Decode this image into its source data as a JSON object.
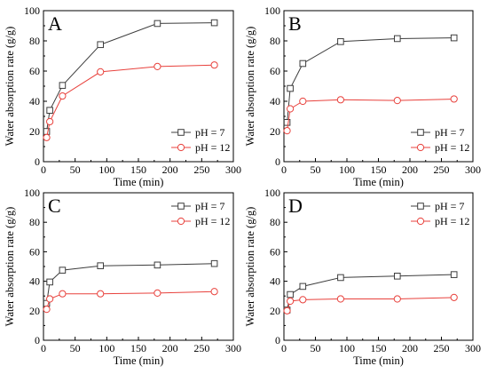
{
  "chart_data": [
    {
      "type": "line",
      "panel_label": "A",
      "xlabel": "Time (min)",
      "ylabel": "Water absorption rate (g/g)",
      "xlim": [
        0,
        300
      ],
      "ylim": [
        0,
        100
      ],
      "xticks": [
        0,
        50,
        100,
        150,
        200,
        250,
        300
      ],
      "yticks": [
        0,
        20,
        40,
        60,
        80,
        100
      ],
      "legend": "bottom-right",
      "x": [
        5,
        10,
        30,
        90,
        180,
        270
      ],
      "series": [
        {
          "name": "pH = 7",
          "color": "#3d3d3d",
          "marker": "square",
          "values": [
            20,
            34,
            50.5,
            77.5,
            91.5,
            92
          ]
        },
        {
          "name": "pH = 12",
          "color": "#e8413c",
          "marker": "circle",
          "values": [
            16,
            26.5,
            43.5,
            59.5,
            63,
            64
          ]
        }
      ]
    },
    {
      "type": "line",
      "panel_label": "B",
      "xlabel": "Time (min)",
      "ylabel": "Water absorption rate (g/g)",
      "xlim": [
        0,
        300
      ],
      "ylim": [
        0,
        100
      ],
      "xticks": [
        0,
        50,
        100,
        150,
        200,
        250,
        300
      ],
      "yticks": [
        0,
        20,
        40,
        60,
        80,
        100
      ],
      "legend": "bottom-right",
      "x": [
        5,
        10,
        30,
        90,
        180,
        270
      ],
      "series": [
        {
          "name": "pH = 7",
          "color": "#3d3d3d",
          "marker": "square",
          "values": [
            26,
            48.5,
            65,
            79.5,
            81.5,
            82
          ]
        },
        {
          "name": "pH = 12",
          "color": "#e8413c",
          "marker": "circle",
          "values": [
            20.5,
            35,
            40,
            41,
            40.5,
            41.5
          ]
        }
      ]
    },
    {
      "type": "line",
      "panel_label": "C",
      "xlabel": "Time (min)",
      "ylabel": "Water absorption rate (g/g)",
      "xlim": [
        0,
        300
      ],
      "ylim": [
        0,
        100
      ],
      "xticks": [
        0,
        50,
        100,
        150,
        200,
        250,
        300
      ],
      "yticks": [
        0,
        20,
        40,
        60,
        80,
        100
      ],
      "legend": "top-right",
      "x": [
        5,
        10,
        30,
        90,
        180,
        270
      ],
      "series": [
        {
          "name": "pH = 7",
          "color": "#3d3d3d",
          "marker": "square",
          "values": [
            25,
            39.5,
            47.5,
            50.5,
            51,
            52
          ]
        },
        {
          "name": "pH = 12",
          "color": "#e8413c",
          "marker": "circle",
          "values": [
            21,
            28,
            31.5,
            31.5,
            32,
            33
          ]
        }
      ]
    },
    {
      "type": "line",
      "panel_label": "D",
      "xlabel": "Time (min)",
      "ylabel": "Water absorption rate (g/g)",
      "xlim": [
        0,
        300
      ],
      "ylim": [
        0,
        100
      ],
      "xticks": [
        0,
        50,
        100,
        150,
        200,
        250,
        300
      ],
      "yticks": [
        0,
        20,
        40,
        60,
        80,
        100
      ],
      "legend": "top-right",
      "x": [
        5,
        10,
        30,
        90,
        180,
        270
      ],
      "series": [
        {
          "name": "pH = 7",
          "color": "#3d3d3d",
          "marker": "square",
          "values": [
            20.5,
            31,
            36.5,
            42.5,
            43.5,
            44.5
          ]
        },
        {
          "name": "pH = 12",
          "color": "#e8413c",
          "marker": "circle",
          "values": [
            20,
            26.5,
            27.5,
            28,
            28,
            29
          ]
        }
      ]
    }
  ]
}
